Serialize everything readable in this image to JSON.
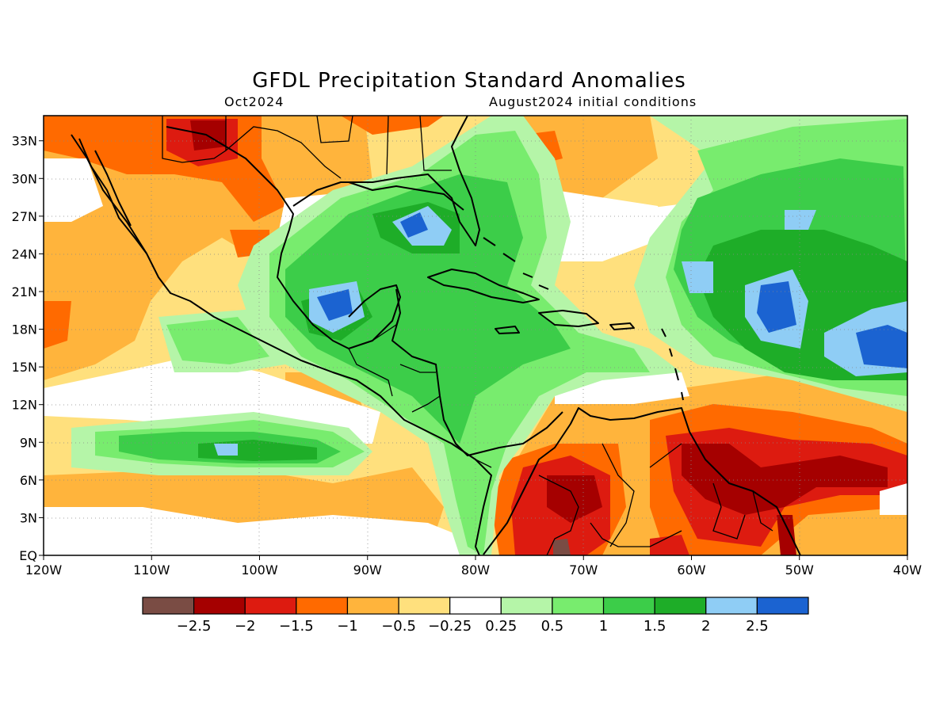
{
  "title": "GFDL Precipitation Standard Anomalies",
  "subtitle_left": "Oct2024",
  "subtitle_right": "August2024 initial conditions",
  "map": {
    "lon_range": [
      -120,
      -40
    ],
    "lat_range": [
      0,
      35
    ],
    "x_ticks": [
      "120W",
      "110W",
      "100W",
      "90W",
      "80W",
      "70W",
      "60W",
      "50W",
      "40W"
    ],
    "y_ticks": [
      "EQ",
      "3N",
      "6N",
      "9N",
      "12N",
      "15N",
      "18N",
      "21N",
      "24N",
      "27N",
      "30N",
      "33N"
    ],
    "grid": "dotted"
  },
  "legend": {
    "colors": [
      "#7a4c44",
      "#a50000",
      "#dd1b10",
      "#ff6a00",
      "#ffb43c",
      "#ffe07d",
      "#ffffff",
      "#b5f5a8",
      "#78ec6e",
      "#3ccd49",
      "#1ead28",
      "#8fcdf5",
      "#1b63d1"
    ],
    "labels": [
      "-2.5",
      "-2",
      "-1.5",
      "-1",
      "-0.5",
      "-0.25",
      "0.25",
      "0.5",
      "1",
      "1.5",
      "2",
      "2.5"
    ]
  }
}
